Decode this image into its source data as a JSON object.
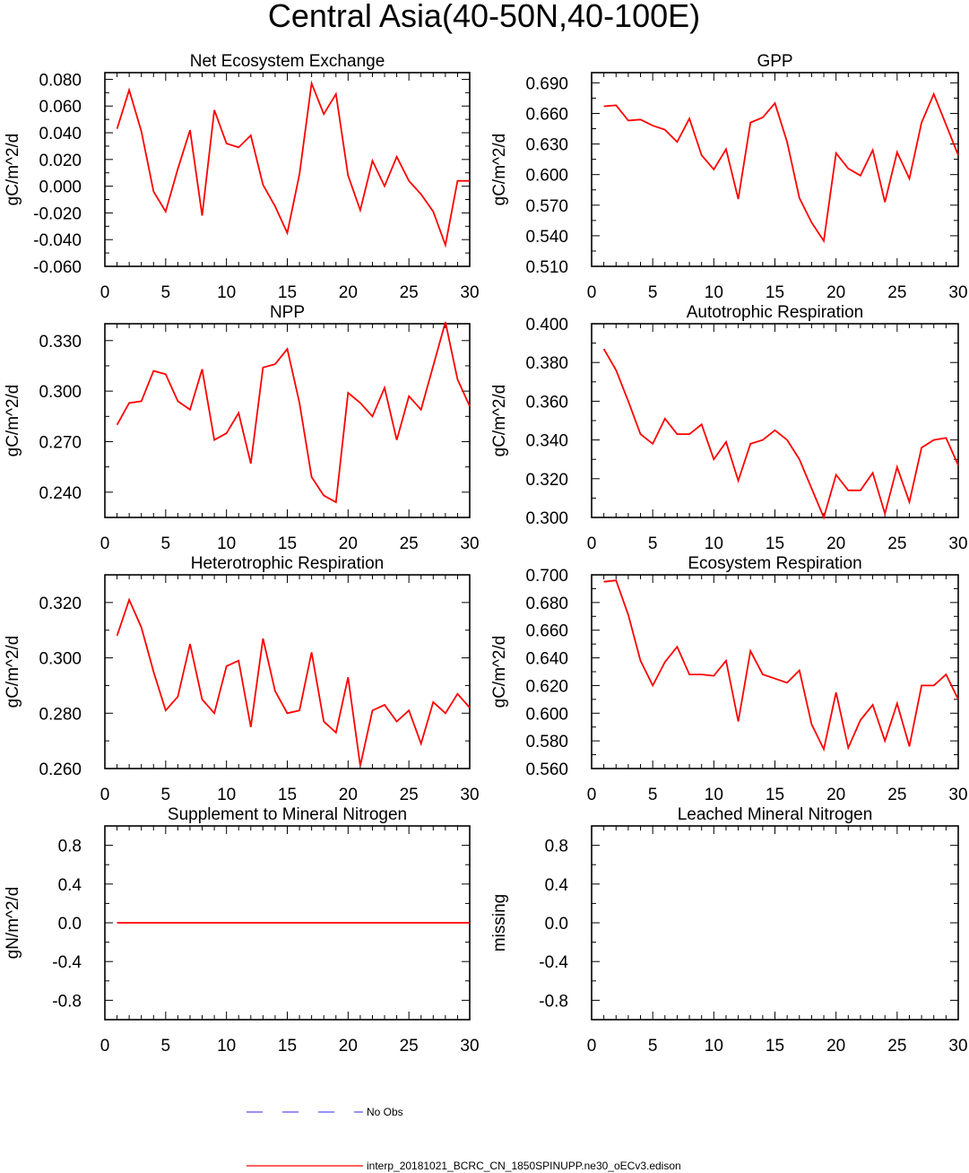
{
  "figure": {
    "title": "Central Asia(40-50N,40-100E)"
  },
  "legend": [
    {
      "label": "No Obs",
      "color": "#5555ee",
      "style": "dashed"
    },
    {
      "label": "interp_20181021_BCRC_CN_1850SPINUPP.ne30_oECv3.edison",
      "color": "#ff0000",
      "style": "solid"
    }
  ],
  "chart_data": [
    {
      "type": "line",
      "title": "Net Ecosystem Exchange",
      "ylabel": "gC/m^2/d",
      "xlabel": "",
      "xlim": [
        0,
        30
      ],
      "ylim": [
        -0.06,
        0.085
      ],
      "xticks": [
        0,
        5,
        10,
        15,
        20,
        25,
        30
      ],
      "yticks": [
        -0.06,
        -0.04,
        -0.02,
        0.0,
        0.02,
        0.04,
        0.06,
        0.08
      ],
      "ytick_labels": [
        "-0.060",
        "-0.040",
        "-0.020",
        "0.000",
        "0.020",
        "0.040",
        "0.060",
        "0.080"
      ],
      "color": "#ff0000",
      "x": [
        1,
        2,
        3,
        4,
        5,
        6,
        7,
        8,
        9,
        10,
        11,
        12,
        13,
        14,
        15,
        16,
        17,
        18,
        19,
        20,
        21,
        22,
        23,
        24,
        25,
        26,
        27,
        28,
        29,
        30
      ],
      "values": [
        0.043,
        0.072,
        0.041,
        -0.004,
        -0.019,
        0.013,
        0.042,
        -0.022,
        0.057,
        0.032,
        0.029,
        0.038,
        0.001,
        -0.015,
        -0.035,
        0.009,
        0.077,
        0.054,
        0.069,
        0.008,
        -0.018,
        0.019,
        0.0,
        0.022,
        0.004,
        -0.006,
        -0.019,
        -0.044,
        0.004,
        0.004
      ]
    },
    {
      "type": "line",
      "title": "GPP",
      "ylabel": "gC/m^2/d",
      "xlabel": "",
      "xlim": [
        0,
        30
      ],
      "ylim": [
        0.51,
        0.7
      ],
      "xticks": [
        0,
        5,
        10,
        15,
        20,
        25,
        30
      ],
      "yticks": [
        0.51,
        0.54,
        0.57,
        0.6,
        0.63,
        0.66,
        0.69
      ],
      "ytick_labels": [
        "0.510",
        "0.540",
        "0.570",
        "0.600",
        "0.630",
        "0.660",
        "0.690"
      ],
      "color": "#ff0000",
      "x": [
        1,
        2,
        3,
        4,
        5,
        6,
        7,
        8,
        9,
        10,
        11,
        12,
        13,
        14,
        15,
        16,
        17,
        18,
        19,
        20,
        21,
        22,
        23,
        24,
        25,
        26,
        27,
        28,
        29,
        30
      ],
      "values": [
        0.667,
        0.668,
        0.653,
        0.654,
        0.648,
        0.644,
        0.632,
        0.655,
        0.619,
        0.605,
        0.625,
        0.576,
        0.651,
        0.656,
        0.67,
        0.632,
        0.577,
        0.553,
        0.535,
        0.621,
        0.606,
        0.599,
        0.624,
        0.573,
        0.622,
        0.596,
        0.651,
        0.679,
        0.649,
        0.619
      ]
    },
    {
      "type": "line",
      "title": "NPP",
      "ylabel": "gC/m^2/d",
      "xlabel": "",
      "xlim": [
        0,
        30
      ],
      "ylim": [
        0.225,
        0.34
      ],
      "xticks": [
        0,
        5,
        10,
        15,
        20,
        25,
        30
      ],
      "yticks": [
        0.24,
        0.27,
        0.3,
        0.33
      ],
      "ytick_labels": [
        "0.240",
        "0.270",
        "0.300",
        "0.330"
      ],
      "color": "#ff0000",
      "x": [
        1,
        2,
        3,
        4,
        5,
        6,
        7,
        8,
        9,
        10,
        11,
        12,
        13,
        14,
        15,
        16,
        17,
        18,
        19,
        20,
        21,
        22,
        23,
        24,
        25,
        26,
        27,
        28,
        29,
        30
      ],
      "values": [
        0.28,
        0.293,
        0.294,
        0.312,
        0.31,
        0.294,
        0.289,
        0.313,
        0.271,
        0.275,
        0.287,
        0.257,
        0.314,
        0.316,
        0.325,
        0.293,
        0.249,
        0.238,
        0.234,
        0.299,
        0.293,
        0.285,
        0.302,
        0.271,
        0.297,
        0.289,
        0.315,
        0.341,
        0.307,
        0.291
      ]
    },
    {
      "type": "line",
      "title": "Autotrophic Respiration",
      "ylabel": "gC/m^2/d",
      "xlabel": "",
      "xlim": [
        0,
        30
      ],
      "ylim": [
        0.3,
        0.4
      ],
      "xticks": [
        0,
        5,
        10,
        15,
        20,
        25,
        30
      ],
      "yticks": [
        0.3,
        0.32,
        0.34,
        0.36,
        0.38,
        0.4
      ],
      "ytick_labels": [
        "0.300",
        "0.320",
        "0.340",
        "0.360",
        "0.380",
        "0.400"
      ],
      "color": "#ff0000",
      "x": [
        1,
        2,
        3,
        4,
        5,
        6,
        7,
        8,
        9,
        10,
        11,
        12,
        13,
        14,
        15,
        16,
        17,
        18,
        19,
        20,
        21,
        22,
        23,
        24,
        25,
        26,
        27,
        28,
        29,
        30
      ],
      "values": [
        0.387,
        0.376,
        0.36,
        0.343,
        0.338,
        0.351,
        0.343,
        0.343,
        0.348,
        0.33,
        0.339,
        0.319,
        0.338,
        0.34,
        0.345,
        0.34,
        0.33,
        0.315,
        0.3,
        0.322,
        0.314,
        0.314,
        0.323,
        0.302,
        0.326,
        0.308,
        0.336,
        0.34,
        0.341,
        0.327
      ]
    },
    {
      "type": "line",
      "title": "Heterotrophic Respiration",
      "ylabel": "gC/m^2/d",
      "xlabel": "",
      "xlim": [
        0,
        30
      ],
      "ylim": [
        0.26,
        0.33
      ],
      "xticks": [
        0,
        5,
        10,
        15,
        20,
        25,
        30
      ],
      "yticks": [
        0.26,
        0.28,
        0.3,
        0.32
      ],
      "ytick_labels": [
        "0.260",
        "0.280",
        "0.300",
        "0.320"
      ],
      "color": "#ff0000",
      "x": [
        1,
        2,
        3,
        4,
        5,
        6,
        7,
        8,
        9,
        10,
        11,
        12,
        13,
        14,
        15,
        16,
        17,
        18,
        19,
        20,
        21,
        22,
        23,
        24,
        25,
        26,
        27,
        28,
        29,
        30
      ],
      "values": [
        0.308,
        0.321,
        0.311,
        0.295,
        0.281,
        0.286,
        0.305,
        0.285,
        0.28,
        0.297,
        0.299,
        0.275,
        0.307,
        0.288,
        0.28,
        0.281,
        0.302,
        0.277,
        0.273,
        0.293,
        0.261,
        0.281,
        0.283,
        0.277,
        0.281,
        0.269,
        0.284,
        0.28,
        0.287,
        0.282
      ]
    },
    {
      "type": "line",
      "title": "Ecosystem Respiration",
      "ylabel": "gC/m^2/d",
      "xlabel": "",
      "xlim": [
        0,
        30
      ],
      "ylim": [
        0.56,
        0.7
      ],
      "xticks": [
        0,
        5,
        10,
        15,
        20,
        25,
        30
      ],
      "yticks": [
        0.56,
        0.58,
        0.6,
        0.62,
        0.64,
        0.66,
        0.68,
        0.7
      ],
      "ytick_labels": [
        "0.560",
        "0.580",
        "0.600",
        "0.620",
        "0.640",
        "0.660",
        "0.680",
        "0.700"
      ],
      "color": "#ff0000",
      "x": [
        1,
        2,
        3,
        4,
        5,
        6,
        7,
        8,
        9,
        10,
        11,
        12,
        13,
        14,
        15,
        16,
        17,
        18,
        19,
        20,
        21,
        22,
        23,
        24,
        25,
        26,
        27,
        28,
        29,
        30
      ],
      "values": [
        0.695,
        0.696,
        0.671,
        0.638,
        0.62,
        0.637,
        0.648,
        0.628,
        0.628,
        0.627,
        0.638,
        0.594,
        0.645,
        0.628,
        0.625,
        0.622,
        0.631,
        0.592,
        0.574,
        0.615,
        0.575,
        0.595,
        0.606,
        0.58,
        0.607,
        0.576,
        0.62,
        0.62,
        0.628,
        0.61
      ]
    },
    {
      "type": "line",
      "title": "Supplement to Mineral Nitrogen",
      "ylabel": "gN/m^2/d",
      "xlabel": "",
      "xlim": [
        0,
        30
      ],
      "ylim": [
        -1.0,
        1.0
      ],
      "xticks": [
        0,
        5,
        10,
        15,
        20,
        25,
        30
      ],
      "yticks": [
        -0.8,
        -0.4,
        0.0,
        0.4,
        0.8
      ],
      "ytick_labels": [
        "-0.8",
        "-0.4",
        "0.0",
        "0.4",
        "0.8"
      ],
      "color": "#ff0000",
      "x": [
        1,
        2,
        3,
        4,
        5,
        6,
        7,
        8,
        9,
        10,
        11,
        12,
        13,
        14,
        15,
        16,
        17,
        18,
        19,
        20,
        21,
        22,
        23,
        24,
        25,
        26,
        27,
        28,
        29,
        30
      ],
      "values": [
        0,
        0,
        0,
        0,
        0,
        0,
        0,
        0,
        0,
        0,
        0,
        0,
        0,
        0,
        0,
        0,
        0,
        0,
        0,
        0,
        0,
        0,
        0,
        0,
        0,
        0,
        0,
        0,
        0,
        0
      ]
    },
    {
      "type": "line",
      "title": "Leached Mineral Nitrogen",
      "ylabel": "missing",
      "xlabel": "",
      "xlim": [
        0,
        30
      ],
      "ylim": [
        -1.0,
        1.0
      ],
      "xticks": [
        0,
        5,
        10,
        15,
        20,
        25,
        30
      ],
      "yticks": [
        -0.8,
        -0.4,
        0.0,
        0.4,
        0.8
      ],
      "ytick_labels": [
        "-0.8",
        "-0.4",
        "0.0",
        "0.4",
        "0.8"
      ],
      "color": "#ff0000",
      "x": [],
      "values": []
    }
  ]
}
